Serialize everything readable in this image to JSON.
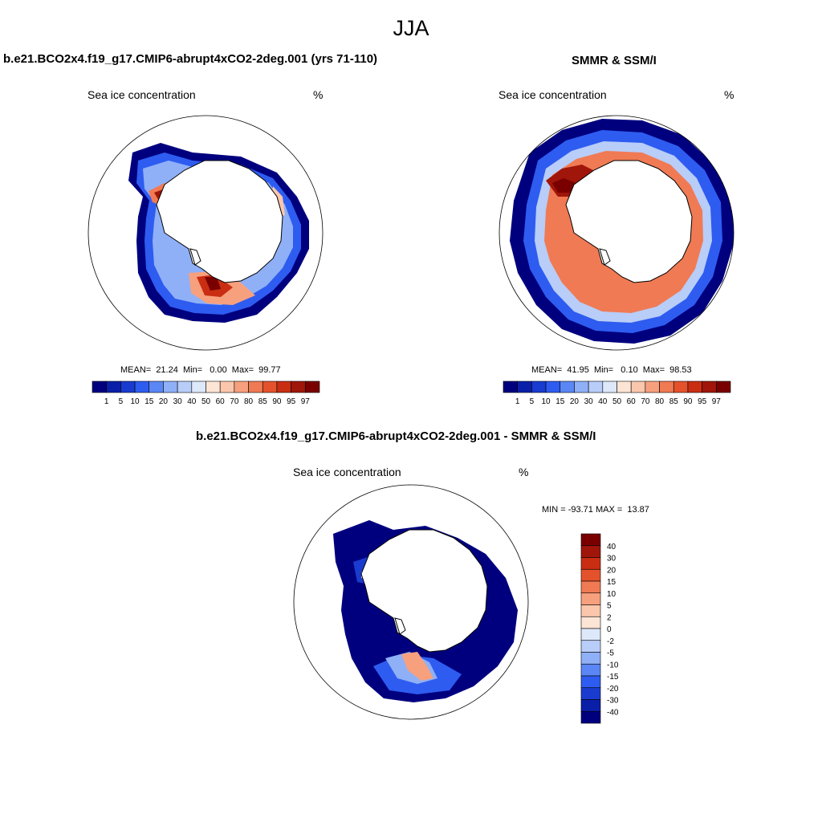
{
  "main_title": "JJA",
  "panels": [
    {
      "title": "b.e21.BCO2x4.f19_g17.CMIP6-abrupt4xCO2-2deg.001 (yrs 71-110)",
      "variable": "Sea ice concentration",
      "units": "%",
      "stats": "MEAN=  21.24  Min=   0.00  Max=  99.77"
    },
    {
      "title": "SMMR & SSM/I",
      "variable": "Sea ice concentration",
      "units": "%",
      "stats": "MEAN=  41.95  Min=   0.10  Max=  98.53"
    },
    {
      "title": "b.e21.BCO2x4.f19_g17.CMIP6-abrupt4xCO2-2deg.001 - SMMR & SSM/I",
      "variable": "Sea ice concentration",
      "units": "%",
      "stats": "MIN = -93.71 MAX =  13.87"
    }
  ],
  "colorbar_main": {
    "labels": [
      "1",
      "5",
      "10",
      "15",
      "20",
      "30",
      "40",
      "50",
      "60",
      "70",
      "80",
      "85",
      "90",
      "95",
      "97"
    ],
    "colors": [
      "#00007f",
      "#0a1fa8",
      "#1a3bd0",
      "#2e5cf0",
      "#5b86f5",
      "#8fb0f7",
      "#b8cdf8",
      "#dde8fb",
      "#fde5d6",
      "#fbc7ac",
      "#f7a07e",
      "#f07a54",
      "#e4522c",
      "#c92e12",
      "#a0160a",
      "#7a0000"
    ]
  },
  "colorbar_diff": {
    "labels": [
      "40",
      "30",
      "20",
      "15",
      "10",
      "5",
      "2",
      "0",
      "-2",
      "-5",
      "-10",
      "-15",
      "-20",
      "-30",
      "-40"
    ],
    "colors": [
      "#7a0000",
      "#a0160a",
      "#c92e12",
      "#e4522c",
      "#f07a54",
      "#f7a07e",
      "#fbc7ac",
      "#fde5d6",
      "#dde8fb",
      "#b8cdf8",
      "#8fb0f7",
      "#5b86f5",
      "#2e5cf0",
      "#1a3bd0",
      "#0a1fa8",
      "#00007f"
    ]
  }
}
